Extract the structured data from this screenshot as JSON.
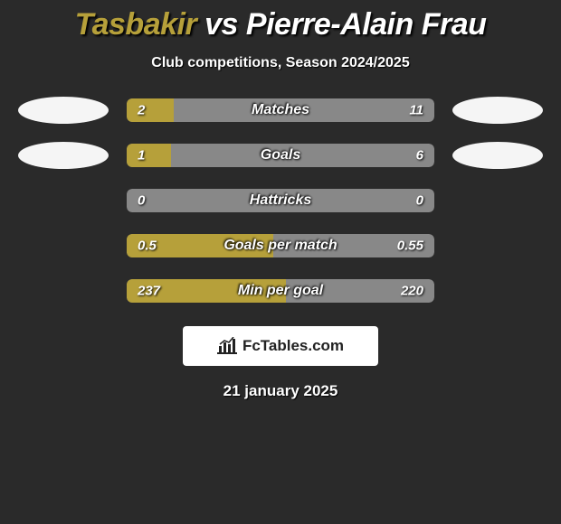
{
  "title": {
    "player1": "Tasbakir",
    "vs": "vs",
    "player2": "Pierre-Alain Frau"
  },
  "subtitle": "Club competitions, Season 2024/2025",
  "date": "21 january 2025",
  "logo_text": "FcTables.com",
  "colors": {
    "bar_fill": "#b6a03a",
    "bar_bg": "#888888",
    "background": "#2a2a2a",
    "ellipse": "#f5f5f5"
  },
  "stats": [
    {
      "label": "Matches",
      "left_val": "2",
      "right_val": "11",
      "left_num": 2,
      "right_num": 11,
      "fill_pct": 15.4,
      "show_ellipse": true
    },
    {
      "label": "Goals",
      "left_val": "1",
      "right_val": "6",
      "left_num": 1,
      "right_num": 6,
      "fill_pct": 14.3,
      "show_ellipse": true
    },
    {
      "label": "Hattricks",
      "left_val": "0",
      "right_val": "0",
      "left_num": 0,
      "right_num": 0,
      "fill_pct": 0,
      "show_ellipse": false
    },
    {
      "label": "Goals per match",
      "left_val": "0.5",
      "right_val": "0.55",
      "left_num": 0.5,
      "right_num": 0.55,
      "fill_pct": 47.6,
      "show_ellipse": false
    },
    {
      "label": "Min per goal",
      "left_val": "237",
      "right_val": "220",
      "left_num": 237,
      "right_num": 220,
      "fill_pct": 51.9,
      "show_ellipse": false
    }
  ]
}
